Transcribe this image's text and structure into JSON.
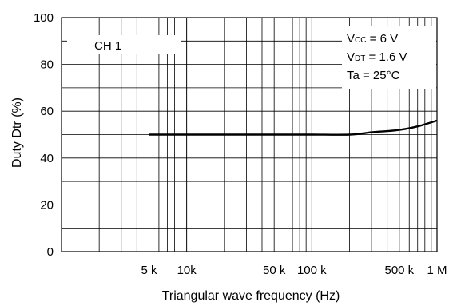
{
  "chart_data": {
    "type": "line",
    "xlabel": "Triangular wave frequency (Hz)",
    "ylabel": "Duty Dtr (%)",
    "x_scale": "log",
    "xlim": [
      1000,
      1000000
    ],
    "ylim": [
      0,
      100
    ],
    "grid": true,
    "x_tick_labels": [
      {
        "value": 5000,
        "label": "5 k"
      },
      {
        "value": 10000,
        "label": "10k"
      },
      {
        "value": 50000,
        "label": "50 k"
      },
      {
        "value": 100000,
        "label": "100 k"
      },
      {
        "value": 500000,
        "label": "500 k"
      },
      {
        "value": 1000000,
        "label": "1 M"
      }
    ],
    "y_ticks": [
      0,
      20,
      40,
      60,
      80,
      100
    ],
    "series": [
      {
        "x": [
          5000,
          10000,
          50000,
          100000,
          200000,
          300000,
          400000,
          500000,
          700000,
          1000000
        ],
        "y": [
          50,
          50,
          50,
          50,
          50,
          51,
          51.5,
          52,
          53.5,
          56
        ]
      }
    ],
    "annotations": {
      "channel": "CH 1",
      "conditions": [
        {
          "main": "V",
          "sub": "CC",
          "rest": " = 6 V"
        },
        {
          "main": "V",
          "sub": "DT",
          "rest": " = 1.6 V"
        },
        {
          "main": "Ta = 25°C",
          "sub": "",
          "rest": ""
        }
      ]
    }
  }
}
